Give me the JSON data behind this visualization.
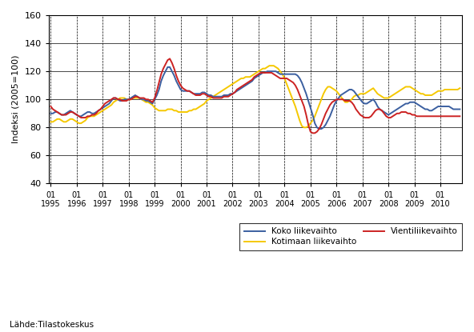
{
  "ylabel": "Indeksi (2005=100)",
  "source_label": "Lähde:Tilastokeskus",
  "ylim": [
    40,
    160
  ],
  "yticks": [
    40,
    60,
    80,
    100,
    120,
    140,
    160
  ],
  "legend": [
    "Koko liikevaihto",
    "Kotimaan liikevaihto",
    "Vientiliikevaihto"
  ],
  "colors": {
    "koko": "#3B5FA0",
    "kotimaan": "#F5C800",
    "vienti": "#CC2222"
  },
  "linewidth": 1.4,
  "koko": [
    90,
    90,
    91,
    91,
    90,
    89,
    89,
    90,
    91,
    92,
    91,
    90,
    89,
    88,
    88,
    89,
    90,
    91,
    91,
    90,
    90,
    91,
    92,
    93,
    94,
    95,
    96,
    97,
    99,
    101,
    101,
    100,
    99,
    99,
    100,
    100,
    100,
    101,
    102,
    103,
    102,
    101,
    100,
    100,
    99,
    99,
    98,
    97,
    100,
    103,
    107,
    113,
    117,
    120,
    123,
    123,
    120,
    117,
    113,
    110,
    107,
    106,
    106,
    106,
    106,
    105,
    104,
    104,
    104,
    104,
    105,
    105,
    104,
    103,
    103,
    102,
    102,
    102,
    102,
    102,
    103,
    103,
    103,
    104,
    104,
    105,
    106,
    107,
    108,
    109,
    110,
    111,
    112,
    113,
    115,
    116,
    117,
    118,
    119,
    119,
    120,
    120,
    120,
    120,
    120,
    119,
    118,
    118,
    118,
    118,
    118,
    118,
    118,
    118,
    117,
    115,
    112,
    108,
    104,
    99,
    94,
    89,
    83,
    80,
    79,
    79,
    80,
    82,
    85,
    88,
    92,
    96,
    99,
    101,
    103,
    104,
    105,
    106,
    107,
    107,
    106,
    104,
    102,
    100,
    98,
    97,
    97,
    98,
    99,
    100,
    98,
    95,
    93,
    92,
    91,
    90,
    89,
    90,
    91,
    92,
    93,
    94,
    95,
    96,
    97,
    97,
    98,
    98,
    98,
    97,
    96,
    95,
    94,
    93,
    93,
    92,
    92,
    93,
    94,
    95,
    95,
    95,
    95,
    95,
    95,
    94,
    93,
    93,
    93,
    93
  ],
  "kotimaan": [
    84,
    84,
    85,
    86,
    86,
    85,
    84,
    84,
    85,
    86,
    86,
    85,
    84,
    83,
    83,
    84,
    85,
    87,
    88,
    88,
    88,
    89,
    90,
    91,
    92,
    93,
    94,
    95,
    96,
    98,
    99,
    100,
    101,
    101,
    101,
    100,
    100,
    100,
    101,
    101,
    101,
    101,
    100,
    99,
    98,
    98,
    97,
    96,
    94,
    93,
    92,
    92,
    92,
    92,
    93,
    93,
    93,
    92,
    92,
    91,
    91,
    91,
    91,
    91,
    92,
    92,
    93,
    93,
    94,
    95,
    96,
    97,
    99,
    100,
    101,
    102,
    103,
    104,
    105,
    106,
    107,
    108,
    109,
    110,
    111,
    112,
    113,
    114,
    115,
    115,
    116,
    116,
    116,
    117,
    118,
    119,
    120,
    121,
    122,
    122,
    123,
    124,
    124,
    124,
    123,
    122,
    120,
    118,
    115,
    111,
    107,
    103,
    99,
    95,
    90,
    85,
    81,
    80,
    80,
    81,
    83,
    85,
    88,
    92,
    96,
    100,
    104,
    107,
    109,
    109,
    108,
    107,
    106,
    104,
    102,
    100,
    98,
    98,
    99,
    100,
    102,
    103,
    103,
    104,
    104,
    104,
    105,
    106,
    107,
    108,
    106,
    104,
    103,
    102,
    101,
    101,
    101,
    102,
    103,
    104,
    105,
    106,
    107,
    108,
    109,
    109,
    109,
    108,
    107,
    106,
    105,
    104,
    104,
    103,
    103,
    103,
    103,
    104,
    105,
    106,
    106,
    106,
    107,
    107,
    107,
    107,
    107,
    107,
    107,
    108
  ],
  "vienti": [
    95,
    93,
    92,
    91,
    90,
    89,
    89,
    89,
    90,
    91,
    91,
    90,
    89,
    88,
    87,
    87,
    87,
    88,
    88,
    89,
    89,
    90,
    92,
    93,
    95,
    97,
    98,
    99,
    100,
    101,
    101,
    100,
    100,
    99,
    99,
    99,
    100,
    100,
    101,
    102,
    102,
    101,
    101,
    101,
    100,
    100,
    99,
    98,
    101,
    106,
    112,
    118,
    122,
    125,
    128,
    129,
    126,
    122,
    117,
    113,
    110,
    108,
    107,
    106,
    106,
    105,
    104,
    103,
    103,
    103,
    104,
    104,
    103,
    102,
    102,
    101,
    101,
    101,
    101,
    101,
    102,
    102,
    102,
    103,
    104,
    105,
    107,
    108,
    109,
    110,
    111,
    112,
    113,
    114,
    116,
    117,
    118,
    119,
    119,
    119,
    119,
    119,
    119,
    118,
    117,
    116,
    115,
    115,
    115,
    115,
    114,
    113,
    112,
    110,
    107,
    103,
    99,
    95,
    89,
    82,
    77,
    76,
    76,
    77,
    79,
    82,
    86,
    90,
    93,
    96,
    98,
    99,
    100,
    100,
    100,
    100,
    99,
    99,
    99,
    98,
    96,
    93,
    91,
    89,
    88,
    87,
    87,
    87,
    88,
    90,
    92,
    93,
    93,
    92,
    90,
    88,
    87,
    87,
    88,
    89,
    90,
    90,
    91,
    91,
    91,
    90,
    90,
    89,
    89,
    88,
    88,
    88,
    88,
    88,
    88,
    88,
    88,
    88,
    88,
    88,
    88,
    88,
    88,
    88,
    88,
    88,
    88,
    88,
    88,
    88
  ]
}
